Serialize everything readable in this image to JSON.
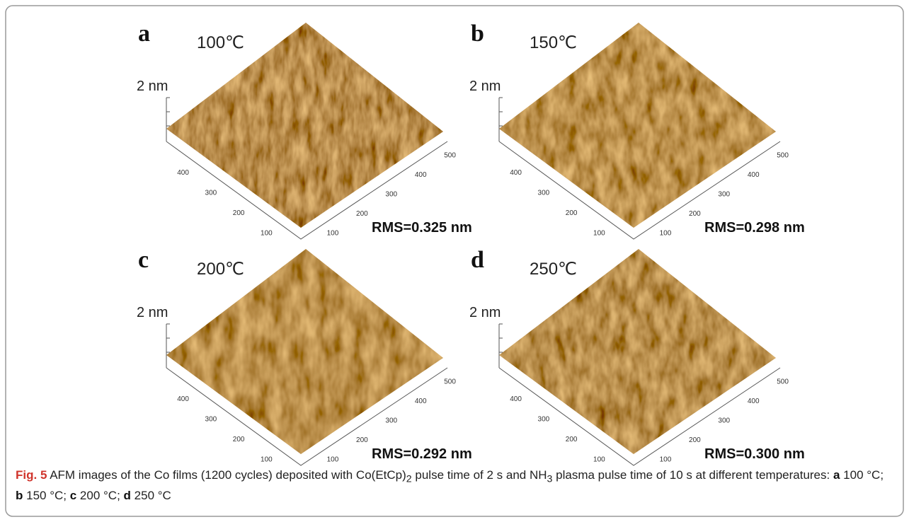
{
  "panels": [
    {
      "label": "a",
      "temperature": "100℃",
      "z_scale": "2 nm",
      "rms": "RMS=0.325 nm",
      "x_ticks": [
        100,
        200,
        300,
        400,
        500
      ],
      "y_ticks": [
        100,
        200,
        300,
        400
      ]
    },
    {
      "label": "b",
      "temperature": "150℃",
      "z_scale": "2 nm",
      "rms": "RMS=0.298 nm",
      "x_ticks": [
        100,
        200,
        300,
        400,
        500
      ],
      "y_ticks": [
        100,
        200,
        300,
        400
      ]
    },
    {
      "label": "c",
      "temperature": "200℃",
      "z_scale": "2 nm",
      "rms": "RMS=0.292 nm",
      "x_ticks": [
        100,
        200,
        300,
        400,
        500
      ],
      "y_ticks": [
        100,
        200,
        300,
        400
      ]
    },
    {
      "label": "d",
      "temperature": "250℃",
      "z_scale": "2 nm",
      "rms": "RMS=0.300 nm",
      "x_ticks": [
        100,
        200,
        300,
        400,
        500
      ],
      "y_ticks": [
        100,
        200,
        300,
        400
      ]
    }
  ],
  "caption": {
    "figure_label": "Fig. 5",
    "runs": [
      {
        "text": "AFM images of the Co films (1200 cycles) deposited with Co(EtCp)"
      },
      {
        "text": "2",
        "sub": true
      },
      {
        "text": " pulse time of 2 s and NH"
      },
      {
        "text": "3",
        "sub": true
      },
      {
        "text": " plasma pulse time of 10 s at different temperatures: "
      },
      {
        "text": "a",
        "bold": true
      },
      {
        "text": " 100 °C; "
      },
      {
        "text": "b",
        "bold": true
      },
      {
        "text": " 150 °C; "
      },
      {
        "text": "c",
        "bold": true
      },
      {
        "text": " 200 °C; "
      },
      {
        "text": "d",
        "bold": true
      },
      {
        "text": " 250 °C"
      }
    ]
  }
}
